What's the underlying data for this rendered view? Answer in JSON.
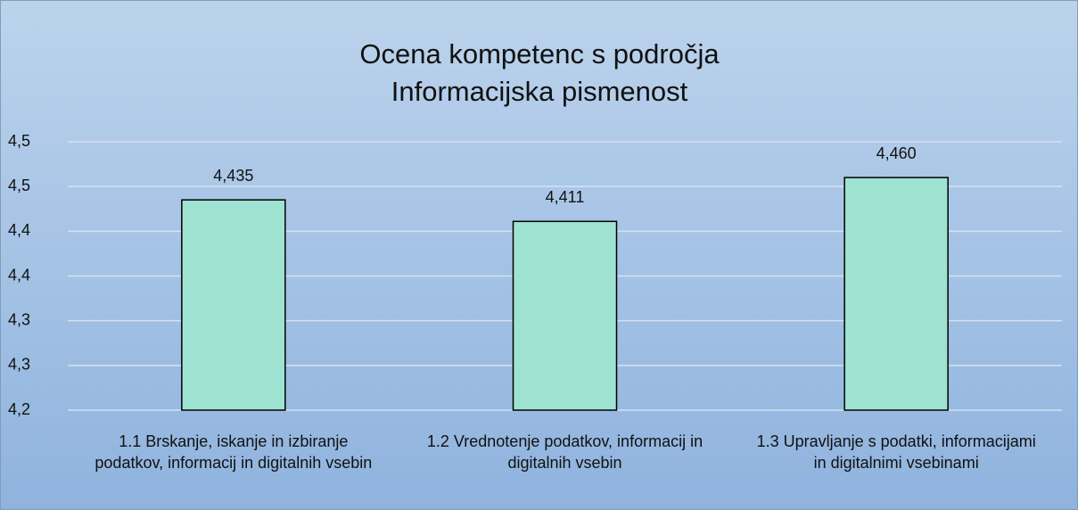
{
  "chart_data": {
    "type": "bar",
    "title": [
      "Ocena kompetenc s področja",
      "Informacijska pismenost"
    ],
    "categories": [
      "1.1 Brskanje, iskanje in izbiranje podatkov, informacij in digitalnih vsebin",
      "1.2 Vrednotenje podatkov, informacij in digitalnih vsebin",
      "1.3 Upravljanje s podatki, informacijami in digitalnimi vsebinami"
    ],
    "values": [
      4.435,
      4.411,
      4.46
    ],
    "value_labels": [
      "4,435",
      "4,411",
      "4,460"
    ],
    "color": "#9ee3d1",
    "ylim": [
      4.2,
      4.5
    ],
    "yticks": [
      {
        "value": 4.2,
        "label": "4,2"
      },
      {
        "value": 4.25,
        "label": "4,3"
      },
      {
        "value": 4.3,
        "label": "4,3"
      },
      {
        "value": 4.35,
        "label": "4,4"
      },
      {
        "value": 4.4,
        "label": "4,4"
      },
      {
        "value": 4.45,
        "label": "4,5"
      },
      {
        "value": 4.5,
        "label": "4,5"
      }
    ],
    "grid": true
  }
}
